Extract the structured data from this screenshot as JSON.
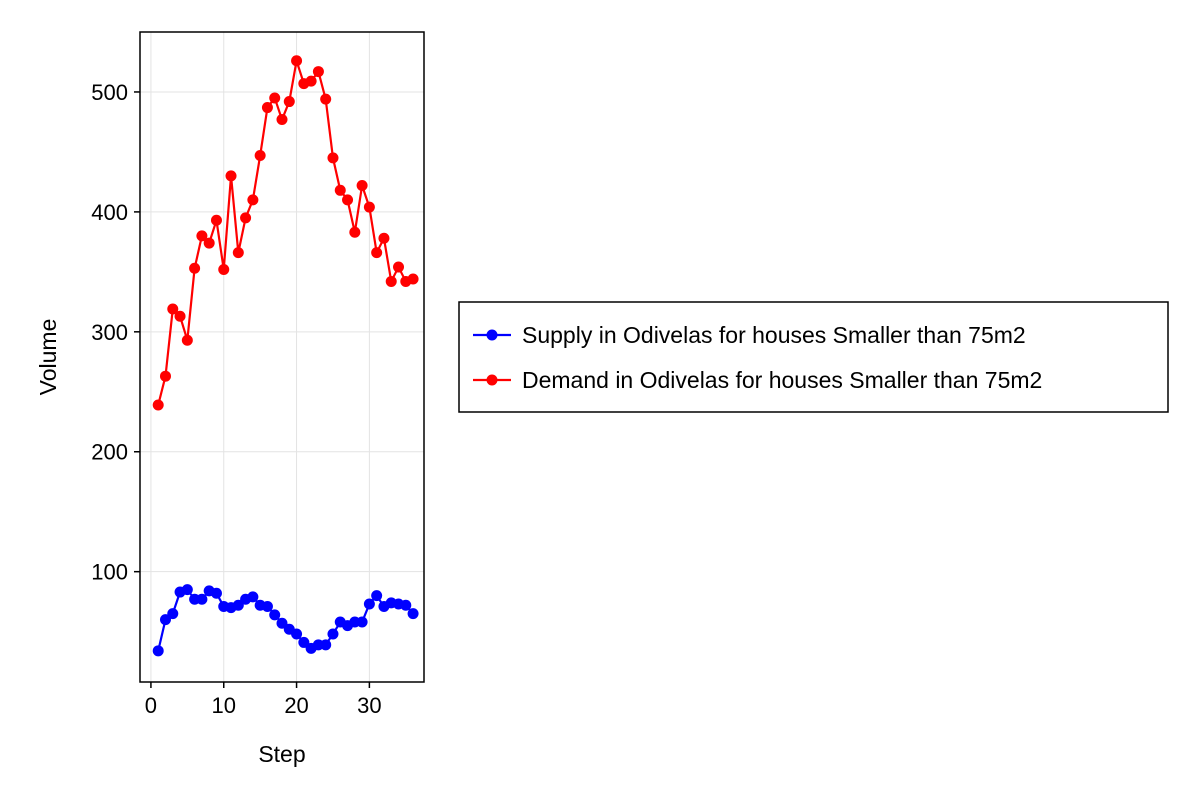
{
  "chart_data": {
    "type": "line",
    "xlabel": "Step",
    "ylabel": "Volume",
    "xlim": [
      -1.5,
      37.5
    ],
    "ylim": [
      8,
      550
    ],
    "xticks": [
      0,
      10,
      20,
      30
    ],
    "yticks": [
      100,
      200,
      300,
      400,
      500
    ],
    "grid": true,
    "legend_position": "right",
    "x": [
      1,
      2,
      3,
      4,
      5,
      6,
      7,
      8,
      9,
      10,
      11,
      12,
      13,
      14,
      15,
      16,
      17,
      18,
      19,
      20,
      21,
      22,
      23,
      24,
      25,
      26,
      27,
      28,
      29,
      30,
      31,
      32,
      33,
      34,
      35,
      36
    ],
    "series": [
      {
        "name": "Supply in Odivelas for houses Smaller than 75m2",
        "color": "#0000ff",
        "values": [
          34,
          60,
          65,
          83,
          85,
          77,
          77,
          84,
          82,
          71,
          70,
          72,
          77,
          79,
          72,
          71,
          64,
          57,
          52,
          48,
          41,
          36,
          39,
          39,
          48,
          58,
          55,
          58,
          58,
          73,
          80,
          71,
          74,
          73,
          72,
          65
        ]
      },
      {
        "name": "Demand in Odivelas for houses Smaller than 75m2",
        "color": "#ff0000",
        "values": [
          239,
          263,
          319,
          313,
          293,
          353,
          380,
          374,
          393,
          352,
          430,
          366,
          395,
          410,
          447,
          487,
          495,
          477,
          492,
          526,
          507,
          509,
          517,
          494,
          445,
          418,
          410,
          383,
          422,
          404,
          366,
          378,
          342,
          354,
          342,
          344
        ]
      }
    ]
  }
}
